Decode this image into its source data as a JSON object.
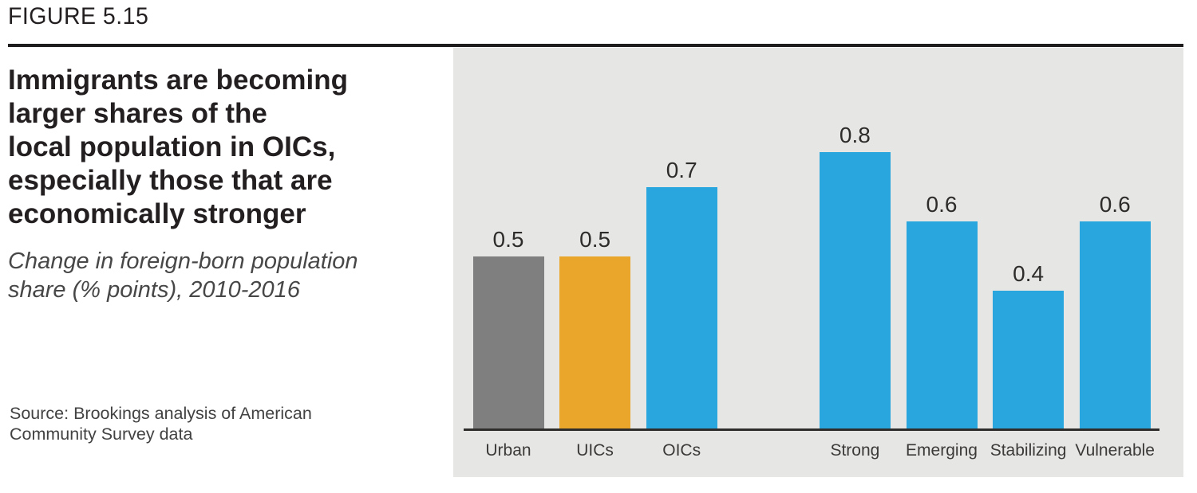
{
  "figure_label": "FIGURE 5.15",
  "title_lines": [
    "Immigrants are becoming",
    "larger shares of the",
    "local population in OICs,",
    "especially those that are",
    "economically stronger"
  ],
  "subtitle_lines": [
    "Change in foreign-born population",
    "share (% points), 2010-2016"
  ],
  "source_lines": [
    "Source: Brookings analysis of American",
    "Community Survey data"
  ],
  "colors": {
    "bar_blue": "#29A6DE",
    "bar_orange": "#E9A62B",
    "bar_gray": "#7F7F7F",
    "panel_bg": "#E6E6E4",
    "rule_black": "#1F1C1D",
    "axis_line": "#2F2D2B",
    "text_dark": "#231F20"
  },
  "chart_data": {
    "type": "bar",
    "categories": [
      "Urban",
      "UICs",
      "OICs",
      "Strong",
      "Emerging",
      "Stabilizing",
      "Vulnerable"
    ],
    "values": [
      0.5,
      0.5,
      0.7,
      0.8,
      0.6,
      0.4,
      0.6
    ],
    "data_labels": [
      "0.5",
      "0.5",
      "0.7",
      "0.8",
      "0.6",
      "0.4",
      "0.6"
    ],
    "bar_colors": [
      "#7F7F7F",
      "#E9A62B",
      "#29A6DE",
      "#29A6DE",
      "#29A6DE",
      "#29A6DE",
      "#29A6DE"
    ],
    "slot_indices": [
      0,
      1,
      2,
      4,
      5,
      6,
      7
    ],
    "title": "Immigrants are becoming larger shares of the local population in OICs, especially those that are economically stronger",
    "xlabel": "",
    "ylabel": "Change in foreign-born population share (% points), 2010-2016",
    "ylim": [
      0,
      1.1
    ],
    "grid": false,
    "legend": false,
    "layout": "gap slot between OICs and Strong; no y-axis ticks; values shown as data labels above bars"
  }
}
